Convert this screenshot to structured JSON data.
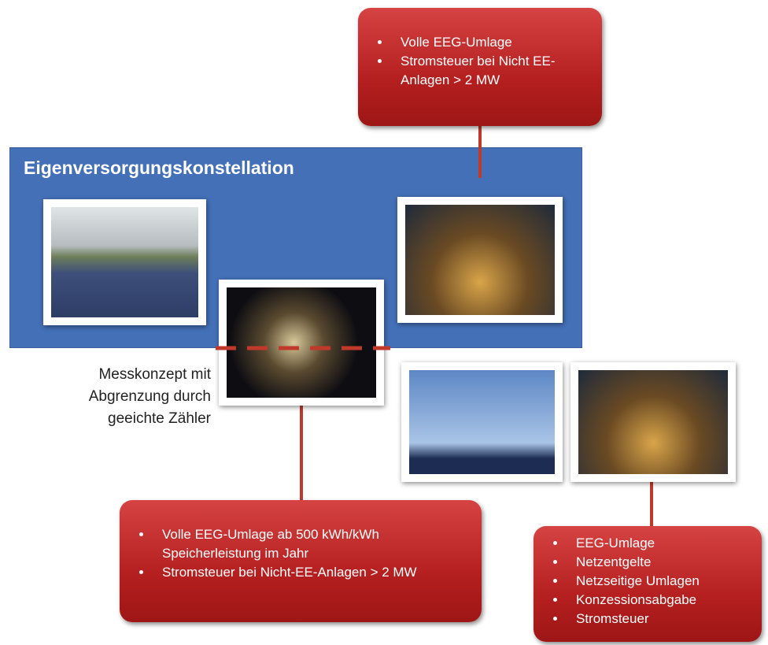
{
  "title": "Eigenversorgungskonstellation",
  "measurement_note": [
    "Messkonzept mit",
    "Abgrenzung durch",
    "geeichte Zähler"
  ],
  "callouts": [
    {
      "items": [
        "Volle EEG-Umlage",
        "Stromsteuer bei Nicht EE-Anlagen > 2 MW"
      ]
    },
    {
      "items": [
        "Volle EEG-Umlage ab 500 kWh/kWh Speicherleistung im Jahr",
        "Stromsteuer bei Nicht-EE-Anlagen > 2 MW"
      ]
    },
    {
      "items": [
        "EEG-Umlage",
        "Netzentgelte",
        "Netzseitige Umlagen",
        "Konzessionsabgabe",
        "Stromsteuer"
      ]
    }
  ]
}
